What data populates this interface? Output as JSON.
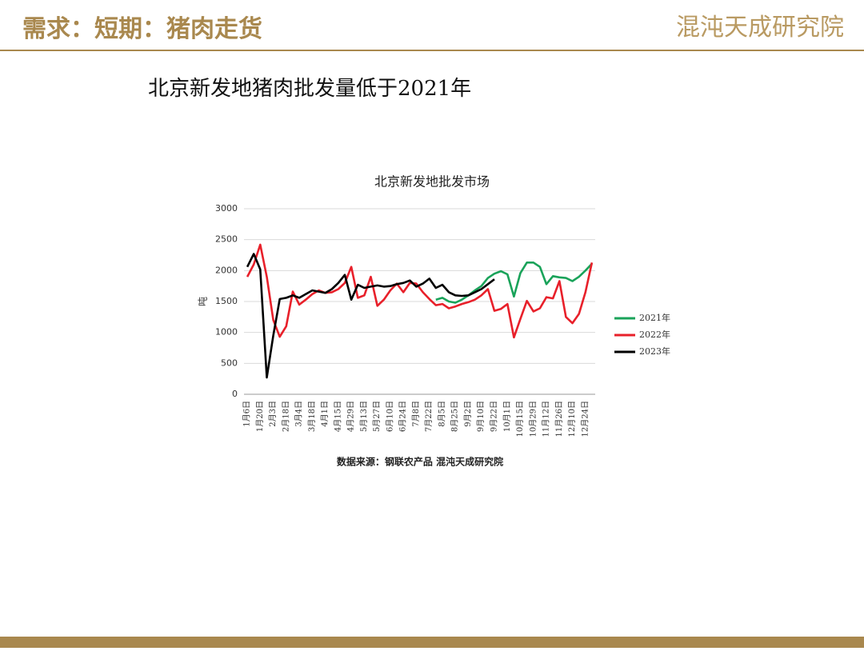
{
  "header": {
    "title": "需求：短期：猪肉走货",
    "logo": "混沌天成研究院"
  },
  "headline": "北京新发地猪肉批发量低于2021年",
  "chart_data": {
    "type": "line",
    "title": "北京新发地批发市场",
    "ylabel": "吨",
    "source": "数据来源：钢联农产品 混沌天成研究院",
    "categories": [
      "1月6日",
      null,
      "1月20日",
      null,
      "2月3日",
      null,
      "2月18日",
      null,
      "3月4日",
      null,
      "3月18日",
      null,
      "4月1日",
      null,
      "4月15日",
      null,
      "4月29日",
      null,
      "5月13日",
      null,
      "5月27日",
      null,
      "6月10日",
      null,
      "6月24日",
      null,
      "7月8日",
      null,
      "7月22日",
      null,
      "8月5日",
      null,
      "8月25日",
      null,
      "9月2日",
      null,
      "9月10日",
      null,
      "9月22日",
      null,
      "10月1日",
      null,
      "10月15日",
      null,
      "10月29日",
      null,
      "11月12日",
      null,
      "11月26日",
      null,
      "12月10日",
      null,
      "12月24日",
      null
    ],
    "ylim": [
      0,
      3000
    ],
    "yticks": [
      0,
      500,
      1000,
      1500,
      2000,
      2500,
      3000
    ],
    "grid": true,
    "legend": "right",
    "series": [
      {
        "name": "2021年",
        "color": "#1aa35a",
        "values": [
          null,
          null,
          null,
          null,
          null,
          null,
          null,
          null,
          null,
          null,
          null,
          null,
          null,
          null,
          null,
          null,
          null,
          null,
          null,
          null,
          null,
          null,
          null,
          null,
          null,
          null,
          null,
          null,
          null,
          1530,
          1560,
          1500,
          1480,
          1530,
          1600,
          1680,
          1750,
          1880,
          1950,
          1990,
          1940,
          1580,
          1960,
          2130,
          2130,
          2060,
          1780,
          1910,
          1890,
          1880,
          1830,
          1900,
          2000,
          2110
        ]
      },
      {
        "name": "2022年",
        "color": "#e8202a",
        "values": [
          1900,
          2100,
          2420,
          1900,
          1200,
          930,
          1100,
          1660,
          1450,
          1530,
          1620,
          1680,
          1640,
          1650,
          1700,
          1800,
          2060,
          1560,
          1600,
          1900,
          1430,
          1530,
          1680,
          1790,
          1650,
          1800,
          1790,
          1650,
          1540,
          1440,
          1460,
          1390,
          1420,
          1460,
          1490,
          1530,
          1600,
          1700,
          1350,
          1380,
          1460,
          920,
          1220,
          1510,
          1340,
          1390,
          1570,
          1550,
          1830,
          1250,
          1150,
          1300,
          1650,
          2130
        ]
      },
      {
        "name": "2023年",
        "color": "#000000",
        "values": [
          2060,
          2270,
          2020,
          270,
          950,
          1540,
          1560,
          1600,
          1560,
          1620,
          1680,
          1660,
          1640,
          1700,
          1800,
          1930,
          1530,
          1770,
          1720,
          1740,
          1760,
          1740,
          1750,
          1780,
          1800,
          1840,
          1740,
          1790,
          1870,
          1720,
          1770,
          1650,
          1600,
          1590,
          1600,
          1650,
          1700,
          1780,
          1860,
          null,
          null,
          null,
          null,
          null,
          null,
          null,
          null,
          null,
          null,
          null,
          null,
          null,
          null,
          null
        ]
      }
    ]
  }
}
